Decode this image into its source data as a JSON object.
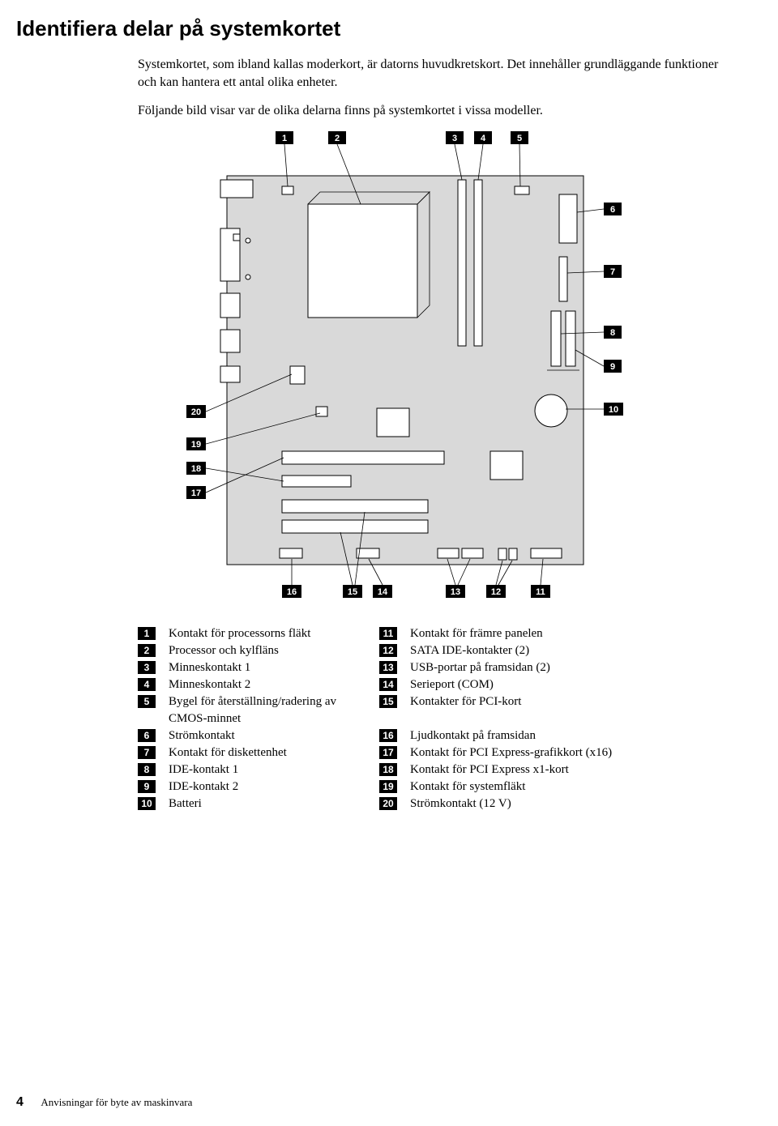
{
  "title": "Identifiera delar på systemkortet",
  "para1": "Systemkortet, som ibland kallas moderkort, är datorns huvudkretskort. Det innehåller grundläggande funktioner och kan hantera ett antal olika enheter.",
  "para2": "Följande bild visar var de olika delarna finns på systemkortet i vissa modeller.",
  "diagram": {
    "numbers": [
      "1",
      "2",
      "3",
      "4",
      "5",
      "6",
      "7",
      "8",
      "9",
      "10",
      "11",
      "12",
      "13",
      "14",
      "15",
      "16",
      "17",
      "18",
      "19",
      "20"
    ],
    "board_bg": "#d9d9d9",
    "stroke": "#000000"
  },
  "legend": [
    {
      "n1": "1",
      "t1": "Kontakt för processorns fläkt",
      "n2": "11",
      "t2": "Kontakt för främre panelen"
    },
    {
      "n1": "2",
      "t1": "Processor och kylfläns",
      "n2": "12",
      "t2": "SATA IDE-kontakter (2)"
    },
    {
      "n1": "3",
      "t1": "Minneskontakt 1",
      "n2": "13",
      "t2": "USB-portar på framsidan (2)"
    },
    {
      "n1": "4",
      "t1": "Minneskontakt 2",
      "n2": "14",
      "t2": "Serieport (COM)"
    },
    {
      "n1": "5",
      "t1": "Bygel för återställning/radering av CMOS-minnet",
      "n2": "15",
      "t2": "Kontakter för PCI-kort"
    },
    {
      "n1": "6",
      "t1": "Strömkontakt",
      "n2": "16",
      "t2": "Ljudkontakt på framsidan"
    },
    {
      "n1": "7",
      "t1": "Kontakt för diskettenhet",
      "n2": "17",
      "t2": "Kontakt för PCI Express-grafikkort (x16)"
    },
    {
      "n1": "8",
      "t1": "IDE-kontakt 1",
      "n2": "18",
      "t2": "Kontakt för PCI Express x1-kort"
    },
    {
      "n1": "9",
      "t1": "IDE-kontakt 2",
      "n2": "19",
      "t2": "Kontakt för systemfläkt"
    },
    {
      "n1": "10",
      "t1": "Batteri",
      "n2": "20",
      "t2": "Strömkontakt (12 V)"
    }
  ],
  "footer": {
    "page": "4",
    "text": "Anvisningar för byte av maskinvara"
  }
}
